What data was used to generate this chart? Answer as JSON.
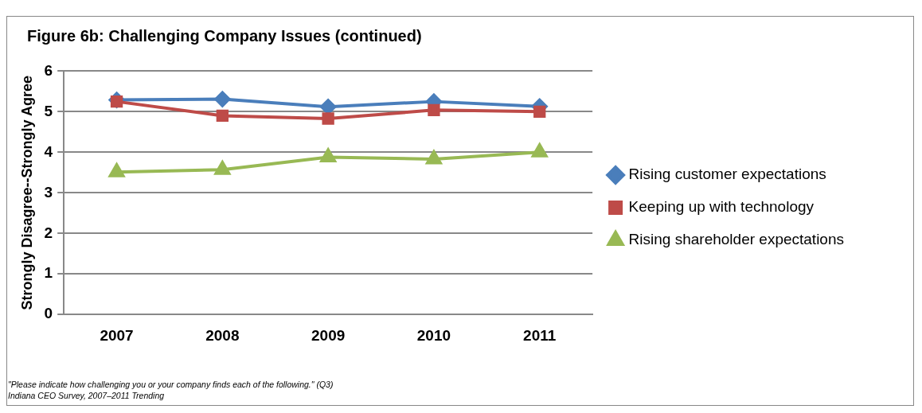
{
  "chart_data": {
    "type": "line",
    "title": "Figure 6b: Challenging Company Issues (continued)",
    "ylabel": "Strongly Disagree--Strongly Agree",
    "categories": [
      "2007",
      "2008",
      "2009",
      "2010",
      "2011"
    ],
    "series": [
      {
        "name": "Rising customer expectations",
        "color": "#4a7ebb",
        "marker": "diamond",
        "values": [
          5.29,
          5.31,
          5.12,
          5.25,
          5.13
        ]
      },
      {
        "name": "Keeping up with technology",
        "color": "#be4b48",
        "marker": "square",
        "values": [
          5.25,
          4.9,
          4.83,
          5.04,
          5.0
        ]
      },
      {
        "name": "Rising shareholder expectations",
        "color": "#98b954",
        "marker": "triangle",
        "values": [
          3.51,
          3.57,
          3.88,
          3.83,
          4.0
        ]
      }
    ],
    "ylim": [
      0,
      6
    ],
    "yticks": [
      0,
      1,
      2,
      3,
      4,
      5,
      6
    ],
    "grid": "y",
    "legend": "right",
    "annotations": [
      "\"Please indicate how challenging you or your company finds each of the following.\"  (Q3)",
      "Indiana CEO Survey, 2007–2011 Trending"
    ]
  }
}
